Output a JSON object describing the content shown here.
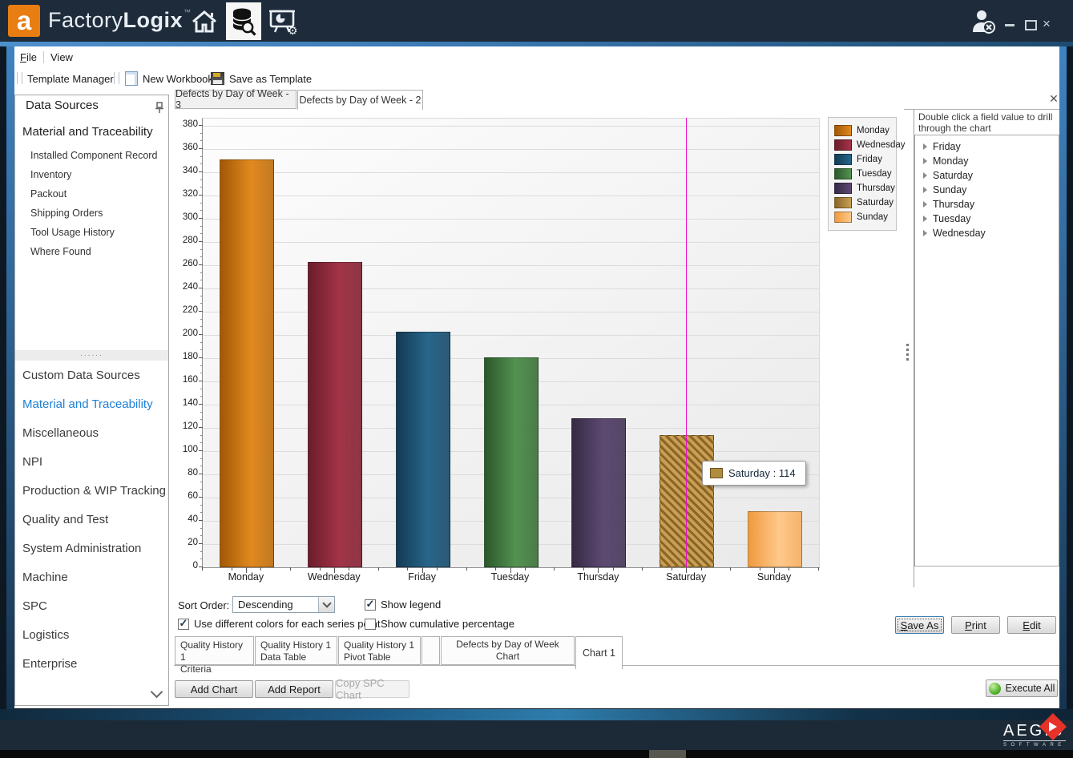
{
  "titlebar": {
    "logo_letter": "a",
    "brand_light": "Factory",
    "brand_bold": "Logix",
    "brand_tm": "™"
  },
  "menubar": {
    "file": "File",
    "view": "View"
  },
  "toolbar": {
    "template_manager": "Template Manager",
    "new_workbook": "New Workbook",
    "save_as_template": "Save as Template"
  },
  "sidebar": {
    "header": "Data Sources",
    "group": "Material and Traceability",
    "items": [
      "Installed Component Record",
      "Inventory",
      "Packout",
      "Shipping Orders",
      "Tool Usage History",
      "Where Found"
    ],
    "categories": [
      "Custom Data Sources",
      "Material and Traceability",
      "Miscellaneous",
      "NPI",
      "Production & WIP Tracking",
      "Quality and Test",
      "System Administration",
      "Machine",
      "SPC",
      "Logistics",
      "Enterprise"
    ],
    "active_category_index": 1
  },
  "doc_tabs": [
    {
      "label": "Defects by Day of Week - 3",
      "active": false
    },
    {
      "label": "Defects by Day of Week - 2",
      "active": true
    }
  ],
  "chart_data": {
    "type": "bar",
    "title": "Defects by Day of Week - 2",
    "categories": [
      "Monday",
      "Wednesday",
      "Friday",
      "Tuesday",
      "Thursday",
      "Saturday",
      "Sunday"
    ],
    "values": [
      351,
      263,
      203,
      181,
      128,
      114,
      48
    ],
    "ylim": [
      0,
      380
    ],
    "ytick_step": 20,
    "grid": true,
    "legend_position": "top-right",
    "legend": [
      {
        "label": "Monday",
        "dark": "#a35805",
        "light": "#e0891f"
      },
      {
        "label": "Wednesday",
        "dark": "#6b1d2b",
        "light": "#a33347"
      },
      {
        "label": "Friday",
        "dark": "#133a53",
        "light": "#27658a"
      },
      {
        "label": "Tuesday",
        "dark": "#2b582b",
        "light": "#539250"
      },
      {
        "label": "Thursday",
        "dark": "#352a44",
        "light": "#5d4a73"
      },
      {
        "label": "Saturday",
        "dark": "#8a6526",
        "light": "#c89f54"
      },
      {
        "label": "Sunday",
        "dark": "#ef9a3e",
        "light": "#ffc88a"
      }
    ],
    "highlighted_index": 5,
    "crosshair_color": "#ee0ccc",
    "tooltip": {
      "text": "Saturday : 114",
      "swatch": "#b08c3e"
    }
  },
  "drill_panel": {
    "header_line1": "Double click a field value to drill",
    "header_line2": "through the chart",
    "items": [
      "Friday",
      "Monday",
      "Saturday",
      "Sunday",
      "Thursday",
      "Tuesday",
      "Wednesday"
    ]
  },
  "controls": {
    "sort_label": "Sort Order:",
    "sort_value": "Descending",
    "show_legend": {
      "label": "Show legend",
      "checked": true
    },
    "diff_colors": {
      "label": "Use different colors for each series point",
      "checked": true
    },
    "cumulative": {
      "label": "Show cumulative percentage",
      "checked": false
    }
  },
  "action_buttons": {
    "save_as": "Save As",
    "print": "Print",
    "edit": "Edit"
  },
  "bottom_tabs": [
    {
      "l1": "Quality History 1",
      "l2": "Criteria",
      "active": false
    },
    {
      "l1": "Quality History 1",
      "l2": "Data Table",
      "active": false
    },
    {
      "l1": "Quality History 1",
      "l2": "Pivot Table",
      "active": false
    },
    {
      "l1": "",
      "l2": "",
      "active": false
    },
    {
      "l1": "Defects by Day of Week Chart",
      "l2": "",
      "active": false
    },
    {
      "l1": "Chart 1",
      "l2": "",
      "active": true
    }
  ],
  "bottom_buttons": {
    "add_chart": "Add Chart",
    "add_report": "Add Report",
    "copy_spc": "Copy SPC Chart",
    "execute_all": "Execute All"
  },
  "footer": {
    "brand": "AEGIS",
    "sub": "SOFTWARE"
  }
}
